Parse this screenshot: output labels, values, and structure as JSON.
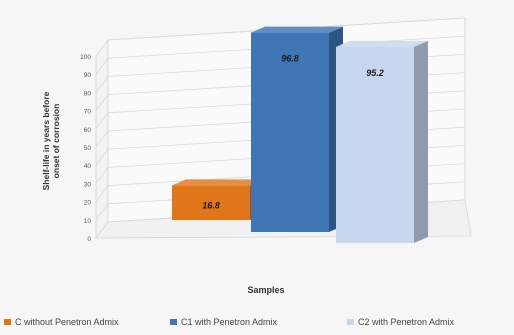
{
  "chart_data": {
    "type": "bar",
    "categories": [
      "C without Penetron Admix",
      "C1 with Penetron Admix",
      "C2 with Penetron Admix"
    ],
    "values": [
      16.8,
      96.8,
      95.2
    ],
    "value_labels": [
      "16.8",
      "96.8",
      "95.2"
    ],
    "xlabel": "Samples",
    "ylabel": "Shelf-life in years before onset of corrosion",
    "ylabel_lines": [
      "Shelf-life in years before",
      "onset of corrosion"
    ],
    "ylim": [
      0,
      100
    ],
    "yticks": [
      0,
      10,
      20,
      30,
      40,
      50,
      60,
      70,
      80,
      90,
      100
    ],
    "grid": true,
    "legend_position": "bottom",
    "projection": "3d",
    "colors": [
      "#e0761a",
      "#3f76b6",
      "#c6d7ee"
    ]
  }
}
